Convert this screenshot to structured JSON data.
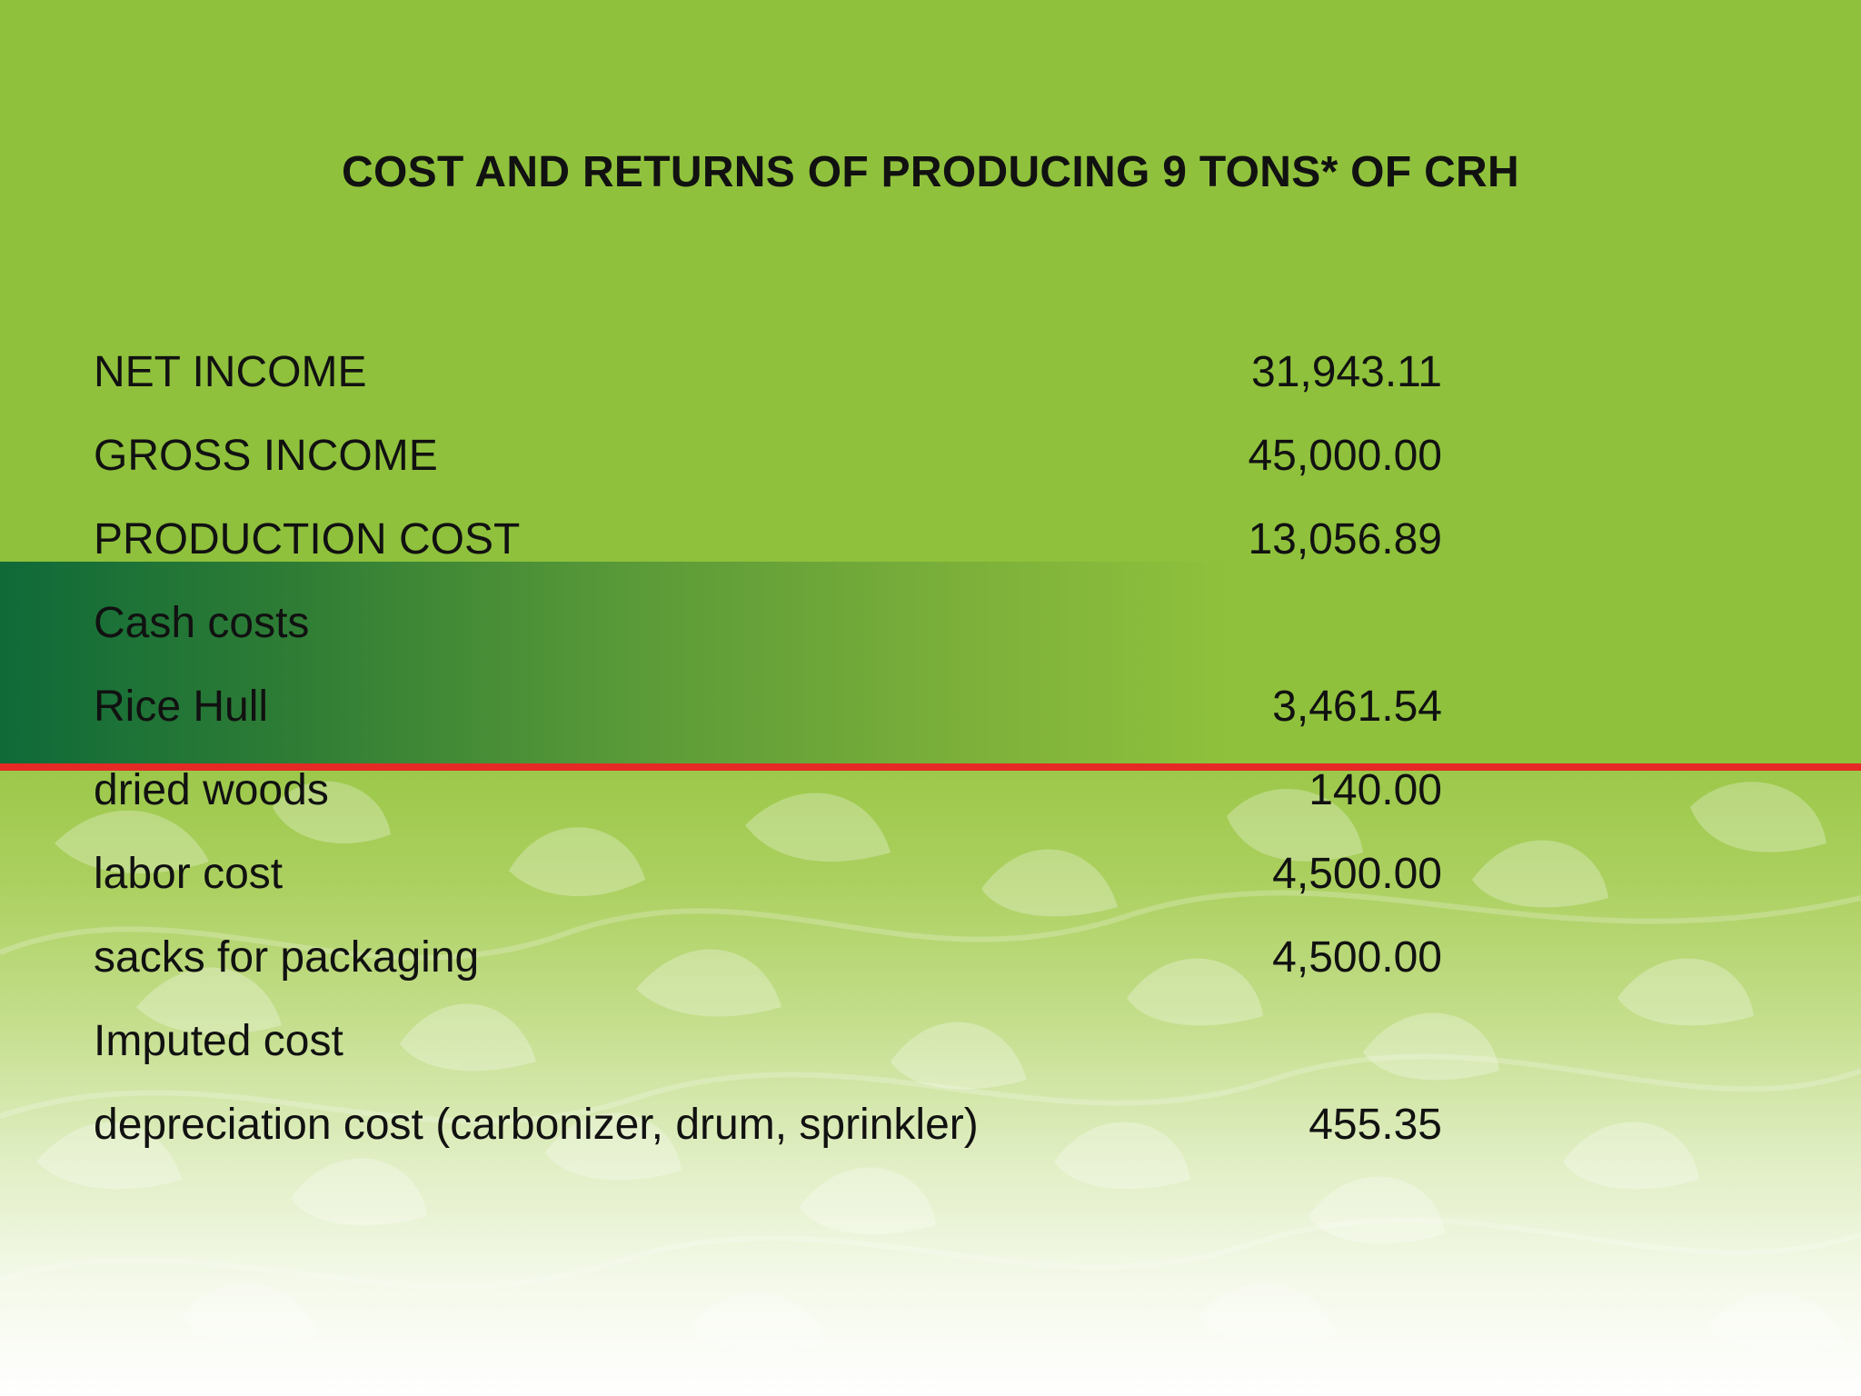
{
  "title": "COST AND RETURNS OF PRODUCING 9 TONS* OF CRH",
  "colors": {
    "green": "#8fc13c",
    "dark_green": "#0f6a38",
    "red_line": "#e52a25",
    "text": "#111111"
  },
  "rows": [
    {
      "label": "NET INCOME",
      "value": "31,943.11"
    },
    {
      "label": "GROSS INCOME",
      "value": "45,000.00"
    },
    {
      "label": "PRODUCTION COST",
      "value": "13,056.89"
    },
    {
      "label": "Cash costs",
      "value": ""
    },
    {
      "label": "Rice Hull",
      "value": "3,461.54"
    },
    {
      "label": "dried woods",
      "value": "140.00"
    },
    {
      "label": "labor cost",
      "value": "4,500.00"
    },
    {
      "label": "sacks for packaging",
      "value": "4,500.00"
    },
    {
      "label": "Imputed cost",
      "value": ""
    },
    {
      "label": "depreciation cost (carbonizer, drum, sprinkler)",
      "value": "455.35"
    }
  ]
}
